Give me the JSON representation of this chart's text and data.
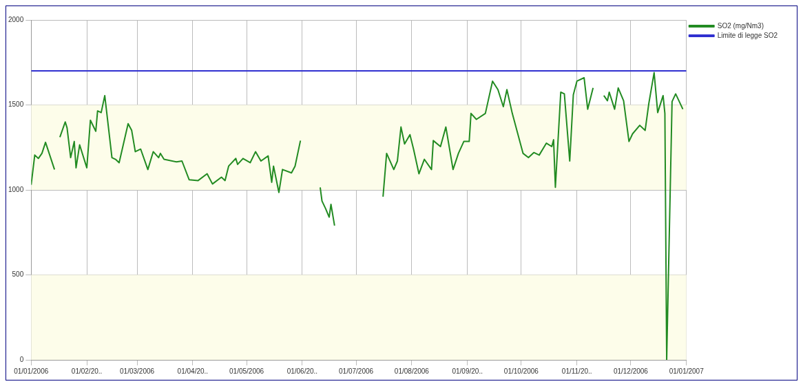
{
  "chart_data": {
    "type": "line",
    "legend": "top right",
    "grid": true,
    "marker": "none",
    "line_style": "solid",
    "xlim": [
      "2006-01-01",
      "2007-01-01"
    ],
    "xticks": [
      {
        "value": "2006-01-01",
        "label": "01/01/2006"
      },
      {
        "value": "2006-02-01",
        "label": "01/02/20.."
      },
      {
        "value": "2006-03-01",
        "label": "01/03/2006"
      },
      {
        "value": "2006-04-01",
        "label": "01/04/20.."
      },
      {
        "value": "2006-05-01",
        "label": "01/05/2006"
      },
      {
        "value": "2006-06-01",
        "label": "01/06/20.."
      },
      {
        "value": "2006-07-01",
        "label": "01/07/2006"
      },
      {
        "value": "2006-08-01",
        "label": "01/08/2006"
      },
      {
        "value": "2006-09-01",
        "label": "01/09/20.."
      },
      {
        "value": "2006-10-01",
        "label": "01/10/2006"
      },
      {
        "value": "2006-11-01",
        "label": "01/11/20.."
      },
      {
        "value": "2006-12-01",
        "label": "01/12/2006"
      },
      {
        "value": "2007-01-01",
        "label": "01/01/2007"
      }
    ],
    "ylim": [
      0,
      2000
    ],
    "yticks": [
      0,
      500,
      1000,
      1500,
      2000
    ],
    "bands": [
      {
        "axis": "y",
        "from": 0,
        "to": 500,
        "color": "#fdfdea"
      },
      {
        "axis": "y",
        "from": 1000,
        "to": 1500,
        "color": "#fdfdea"
      }
    ],
    "series": [
      {
        "name": "SO2 (mg/Nm3)",
        "color": "#228b22",
        "x": [
          "2006-01-01",
          "2006-01-03",
          "2006-01-05",
          "2006-01-07",
          "2006-01-09",
          "2006-01-14",
          "2006-01-15",
          "2006-01-17",
          "2006-01-20",
          "2006-01-21",
          "2006-01-23",
          "2006-01-25",
          "2006-01-26",
          "2006-01-28",
          "2006-02-01",
          "2006-02-03",
          "2006-02-06",
          "2006-02-07",
          "2006-02-09",
          "2006-02-11",
          "2006-02-15",
          "2006-02-17",
          "2006-02-19",
          "2006-02-24",
          "2006-02-26",
          "2006-02-28",
          "2006-03-03",
          "2006-03-07",
          "2006-03-10",
          "2006-03-13",
          "2006-03-14",
          "2006-03-16",
          "2006-03-23",
          "2006-03-26",
          "2006-03-30",
          "2006-04-04",
          "2006-04-09",
          "2006-04-12",
          "2006-04-17",
          "2006-04-19",
          "2006-04-21",
          "2006-04-25",
          "2006-04-26",
          "2006-04-29",
          "2006-05-03",
          "2006-05-06",
          "2006-05-09",
          "2006-05-13",
          "2006-05-15",
          "2006-05-16",
          "2006-05-19",
          "2006-05-21",
          "2006-05-26",
          "2006-05-28",
          "2006-05-31",
          "2006-06-05",
          "2006-06-11",
          "2006-06-12",
          "2006-06-14",
          "2006-06-16",
          "2006-06-17",
          "2006-06-19",
          "2006-07-01",
          "2006-07-16",
          "2006-07-18",
          "2006-07-22",
          "2006-07-24",
          "2006-07-26",
          "2006-07-28",
          "2006-07-31",
          "2006-08-02",
          "2006-08-05",
          "2006-08-08",
          "2006-08-12",
          "2006-08-13",
          "2006-08-17",
          "2006-08-20",
          "2006-08-24",
          "2006-08-27",
          "2006-08-30",
          "2006-09-02",
          "2006-09-03",
          "2006-09-06",
          "2006-09-11",
          "2006-09-15",
          "2006-09-18",
          "2006-09-21",
          "2006-09-23",
          "2006-09-26",
          "2006-10-02",
          "2006-10-05",
          "2006-10-08",
          "2006-10-11",
          "2006-10-15",
          "2006-10-18",
          "2006-10-19",
          "2006-10-20",
          "2006-10-23",
          "2006-10-25",
          "2006-10-28",
          "2006-10-30",
          "2006-11-01",
          "2006-11-05",
          "2006-11-07",
          "2006-11-10",
          "2006-11-13",
          "2006-11-16",
          "2006-11-18",
          "2006-11-19",
          "2006-11-22",
          "2006-11-24",
          "2006-11-27",
          "2006-11-30",
          "2006-12-02",
          "2006-12-06",
          "2006-12-09",
          "2006-12-11",
          "2006-12-14",
          "2006-12-16",
          "2006-12-19",
          "2006-12-20",
          "2006-12-21",
          "2006-12-24",
          "2006-12-26",
          "2006-12-30"
        ],
        "values": [
          1030,
          1205,
          1185,
          1215,
          1280,
          1120,
          null,
          1310,
          1400,
          1365,
          1190,
          1285,
          1130,
          1265,
          1130,
          1410,
          1345,
          1465,
          1455,
          1555,
          1190,
          1180,
          1160,
          1390,
          1350,
          1225,
          1240,
          1120,
          1225,
          1190,
          1215,
          1180,
          1165,
          1170,
          1060,
          1055,
          1095,
          1035,
          1075,
          1055,
          1140,
          1185,
          1150,
          1185,
          1160,
          1225,
          1170,
          1200,
          1045,
          1140,
          985,
          1120,
          1100,
          1140,
          1290,
          null,
          1015,
          935,
          890,
          840,
          915,
          790,
          null,
          960,
          1215,
          1120,
          1170,
          1370,
          1270,
          1325,
          1240,
          1095,
          1180,
          1120,
          1290,
          1255,
          1370,
          1120,
          1215,
          1285,
          1285,
          1450,
          1415,
          1450,
          1640,
          1590,
          1490,
          1590,
          1450,
          1215,
          1190,
          1220,
          1205,
          1275,
          1255,
          1295,
          1015,
          1575,
          1565,
          1170,
          1560,
          1640,
          1660,
          1475,
          1600,
          null,
          1555,
          1525,
          1575,
          1475,
          1600,
          1525,
          1285,
          1330,
          1380,
          1350,
          1505,
          1690,
          1455,
          1555,
          1450,
          0,
          1520,
          1565,
          1475
        ]
      },
      {
        "name": "Limite di legge SO2",
        "color": "#3030d0",
        "x": [
          "2006-01-01",
          "2007-01-01"
        ],
        "values": [
          1700,
          1700
        ]
      }
    ]
  }
}
